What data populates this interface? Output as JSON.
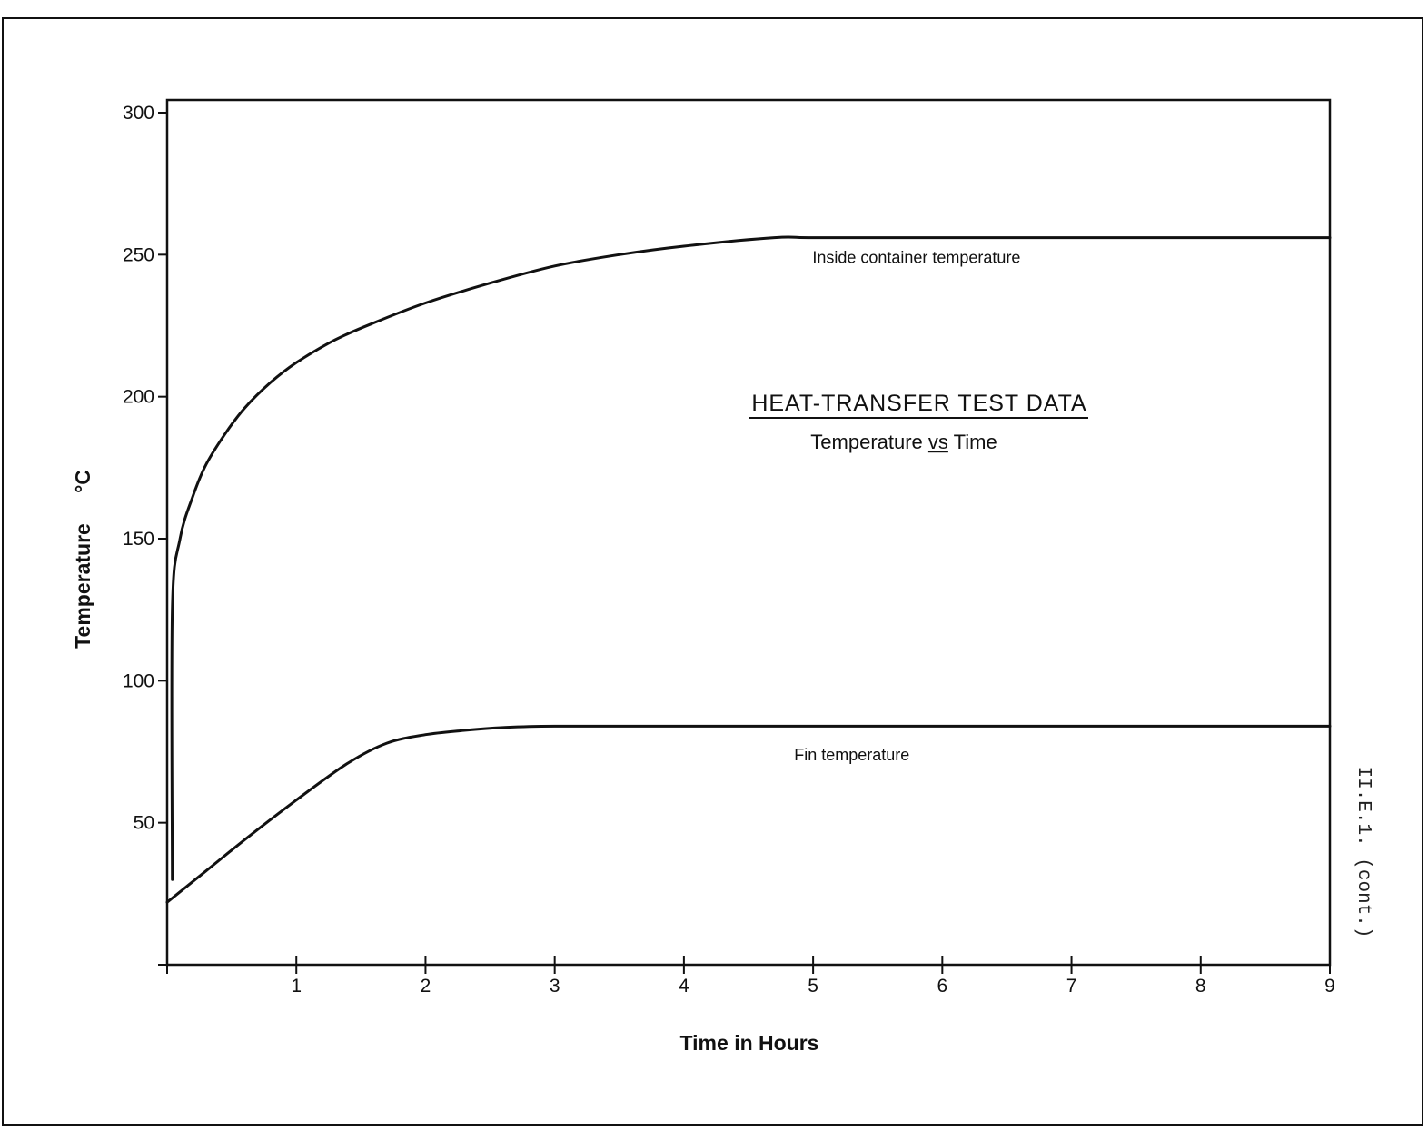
{
  "chart_data": {
    "type": "line",
    "title": "HEAT-TRANSFER TEST DATA",
    "subtitle": "Temperature vs Time",
    "subtitle_parts": [
      "Temperature ",
      "vs",
      " Time"
    ],
    "xlabel": "Time in Hours",
    "ylabel": "Temperature °C",
    "ylabel_parts": [
      "Temperature",
      "°C"
    ],
    "xlim": [
      0,
      9
    ],
    "ylim": [
      0,
      300
    ],
    "x_ticks": [
      1,
      2,
      3,
      4,
      5,
      6,
      7,
      8,
      9
    ],
    "x_tick_labels": [
      "1",
      "2",
      "3",
      "4",
      "5",
      "6",
      "7",
      "8",
      "9"
    ],
    "y_ticks": [
      50,
      100,
      150,
      200,
      250,
      300
    ],
    "y_tick_labels": [
      "50",
      "100",
      "150",
      "200",
      "250",
      "300"
    ],
    "grid": false,
    "legend": "none",
    "series": [
      {
        "name": "Inside container temperature",
        "x": [
          0.04,
          0.04,
          0.1,
          0.2,
          0.3,
          0.45,
          0.6,
          0.8,
          1.0,
          1.3,
          1.6,
          2.0,
          2.5,
          3.0,
          3.5,
          4.0,
          4.7,
          5.0,
          6.0,
          7.0,
          8.0,
          9.0
        ],
        "y": [
          30,
          125,
          150,
          165,
          176,
          187,
          196,
          205,
          212,
          220,
          226,
          233,
          240,
          246,
          250,
          253,
          256,
          256,
          256,
          256,
          256,
          256
        ]
      },
      {
        "name": "Fin temperature",
        "x": [
          0.0,
          0.3,
          0.6,
          1.0,
          1.4,
          1.7,
          2.0,
          2.3,
          2.6,
          3.0,
          4.0,
          5.0,
          6.0,
          7.0,
          8.0,
          9.0
        ],
        "y": [
          22,
          33,
          44,
          58,
          71,
          78,
          81,
          82.5,
          83.5,
          84,
          84,
          84,
          84,
          84,
          84,
          84
        ]
      }
    ],
    "annotations": [
      {
        "text": "Inside container temperature",
        "x": 5.8,
        "y": 247
      },
      {
        "text": "Fin temperature",
        "x": 5.3,
        "y": 72
      }
    ],
    "page_note": "II.E.1. (cont.)"
  }
}
